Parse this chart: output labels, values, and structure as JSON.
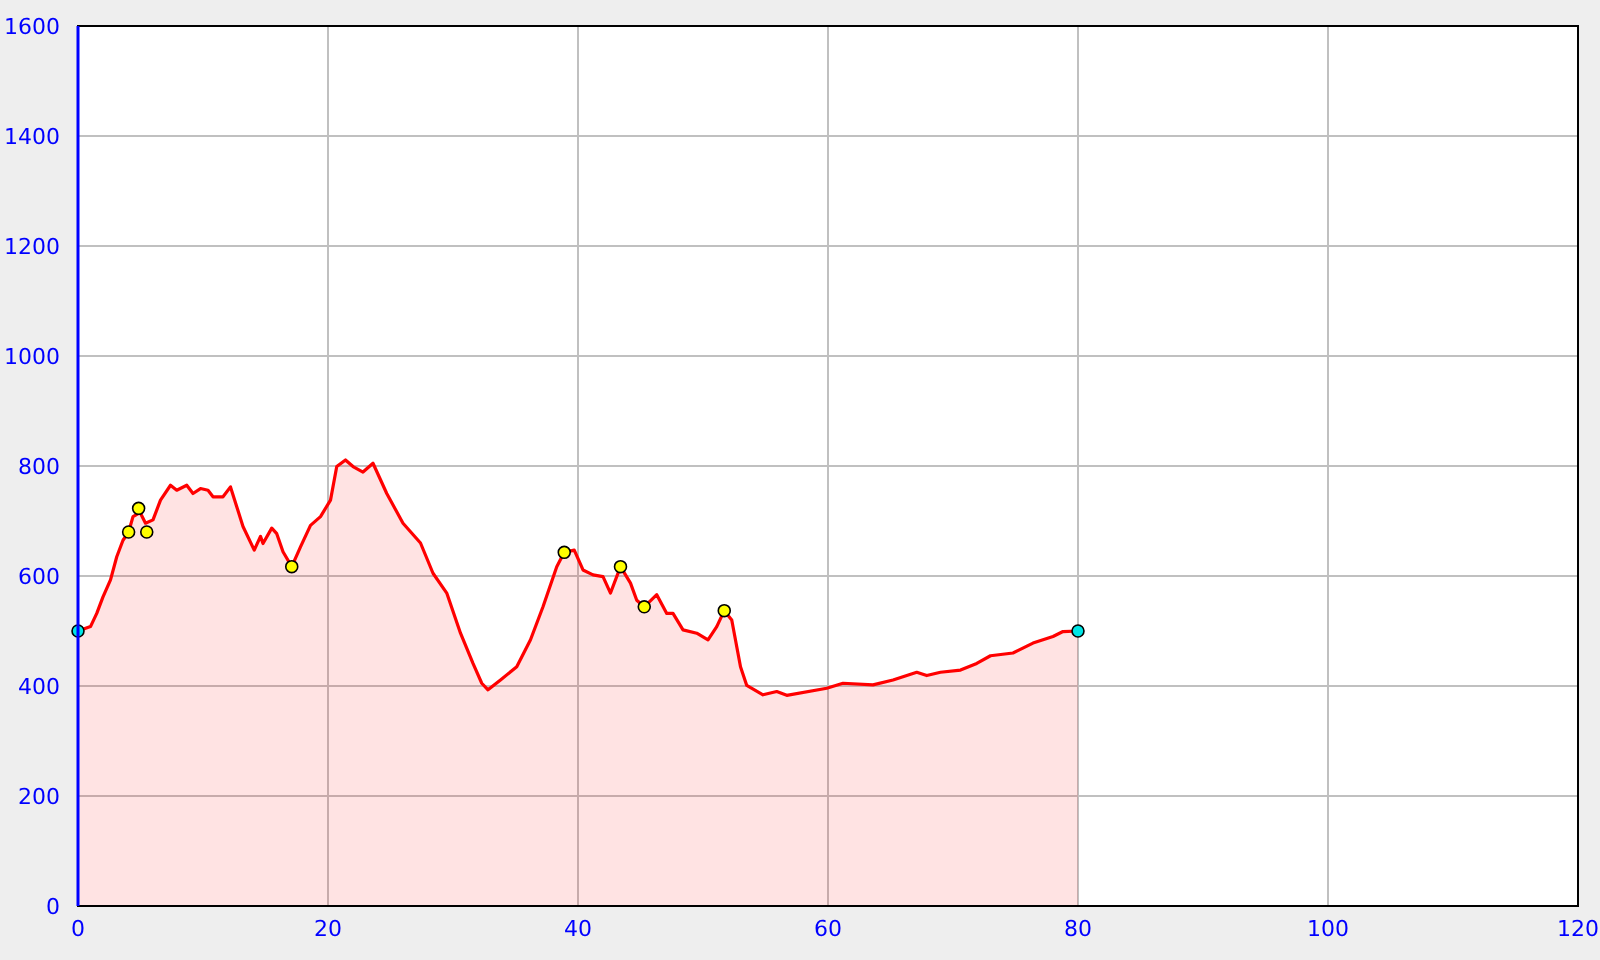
{
  "chart_data": {
    "type": "area",
    "xlim": [
      0,
      120
    ],
    "xticks": [
      0,
      20,
      40,
      60,
      80,
      100,
      120
    ],
    "ylim": [
      0,
      1600
    ],
    "yticks": [
      0,
      200,
      400,
      600,
      800,
      1000,
      1200,
      1400,
      1600
    ],
    "grid": true,
    "series": [
      {
        "color": "#ff0000",
        "x": [
          0,
          1.0,
          1.5,
          2.0,
          2.6,
          3.1,
          3.6,
          4.05,
          4.4,
          4.85,
          5.0,
          5.4,
          6.0,
          6.6,
          7.4,
          7.9,
          8.7,
          9.2,
          9.8,
          10.4,
          10.8,
          11.6,
          12.2,
          12.7,
          13.2,
          14.1,
          14.6,
          14.8,
          15.5,
          15.9,
          16.4,
          17.1,
          17.8,
          18.6,
          19.4,
          20.2,
          20.7,
          21.4,
          22.0,
          22.8,
          23.6,
          24.7,
          26.0,
          27.4,
          28.4,
          29.5,
          30.6,
          31.6,
          32.3,
          32.8,
          33.8,
          35.1,
          36.2,
          37.2,
          38.3,
          38.9,
          39.7,
          40.4,
          41.2,
          42.0,
          42.6,
          43.4,
          44.2,
          44.7,
          45.3,
          46.3,
          47.1,
          47.6,
          48.4,
          49.5,
          50.4,
          51.1,
          51.7,
          52.3,
          53.0,
          53.5,
          54.8,
          55.9,
          56.7,
          59.9,
          61.2,
          63.6,
          65.2,
          67.1,
          67.9,
          69.0,
          70.6,
          71.9,
          73.0,
          74.8,
          76.4,
          78.0,
          78.8,
          80
        ],
        "values": [
          500,
          508,
          532,
          562,
          593,
          635,
          665,
          680,
          708,
          714,
          714,
          696,
          702,
          738,
          765,
          756,
          765,
          750,
          759,
          756,
          744,
          744,
          762,
          726,
          690,
          647,
          672,
          659,
          687,
          677,
          644,
          617,
          653,
          692,
          708,
          738,
          799,
          811,
          799,
          789,
          805,
          750,
          696,
          660,
          605,
          569,
          496,
          441,
          405,
          393,
          411,
          435,
          484,
          544,
          617,
          643,
          647,
          611,
          602,
          599,
          569,
          617,
          587,
          556,
          544,
          566,
          532,
          532,
          502,
          496,
          484,
          508,
          537,
          520,
          435,
          401,
          384,
          390,
          383,
          396,
          405,
          402,
          411,
          425,
          419,
          425,
          429,
          441,
          455,
          460,
          478,
          490,
          499,
          500
        ]
      },
      {
        "type": "scatter",
        "marker": "circle",
        "color": "#ffff00",
        "x": [
          4.05,
          4.85,
          5.5,
          17.1,
          38.9,
          43.4,
          45.3,
          51.7
        ],
        "values": [
          680,
          723,
          680,
          617,
          643,
          617,
          544,
          537
        ]
      },
      {
        "type": "scatter",
        "marker": "circle",
        "color": "#00e5e5",
        "x": [
          0,
          80
        ],
        "values": [
          500,
          500
        ]
      }
    ]
  }
}
